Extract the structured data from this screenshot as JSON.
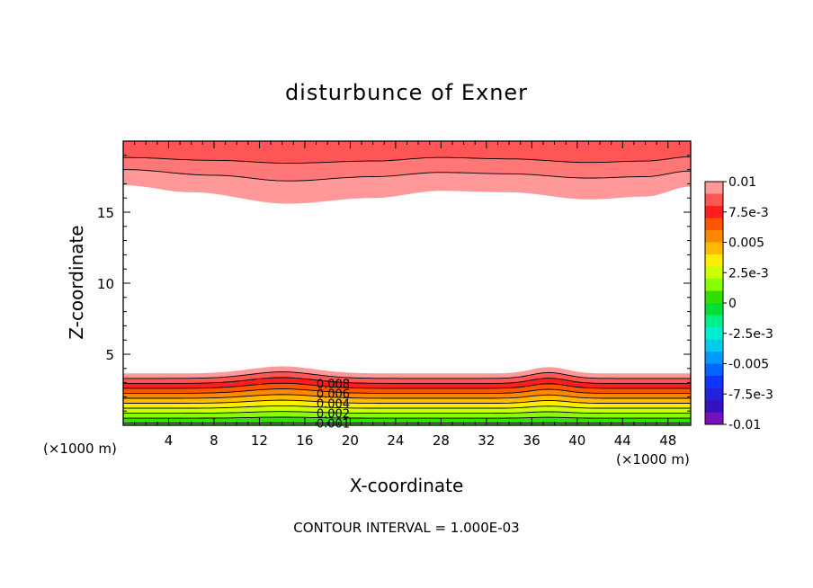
{
  "chart_data": {
    "type": "heatmap",
    "subtype": "filled-contour",
    "title": "disturbunce of Exner",
    "xlabel": "X-coordinate",
    "ylabel": "Z-coordinate",
    "x_unit_left": "(×1000 m)",
    "x_unit_right": "(×1000 m)",
    "xlim": [
      0,
      50
    ],
    "ylim": [
      0,
      20
    ],
    "x_ticks": [
      4,
      8,
      12,
      16,
      20,
      24,
      28,
      32,
      36,
      40,
      44,
      48
    ],
    "x_tick_labels": [
      "4",
      "8",
      "12",
      "16",
      "20",
      "24",
      "28",
      "32",
      "36",
      "40",
      "44",
      "48"
    ],
    "y_ticks": [
      5,
      10,
      15
    ],
    "y_tick_labels": [
      "5",
      "10",
      "15"
    ],
    "contour_interval_text": "CONTOUR INTERVAL = 1.000E-03",
    "contour_labels": [
      "0.008",
      "0.006",
      "0.004",
      "0.002",
      "0.001"
    ],
    "colorbar": {
      "min": -0.01,
      "max": 0.01,
      "tick_labels": [
        "0.01",
        "7.5e-3",
        "0.005",
        "2.5e-3",
        "0",
        "-2.5e-3",
        "-0.005",
        "-7.5e-3",
        "-0.01"
      ],
      "tick_values": [
        0.01,
        0.0075,
        0.005,
        0.0025,
        0,
        -0.0025,
        -0.005,
        -0.0075,
        -0.01
      ],
      "colors_top_to_bottom": [
        "#ff9999",
        "#ff5555",
        "#ff1e1e",
        "#ff5500",
        "#ff8800",
        "#ffbb00",
        "#ffee00",
        "#ccff00",
        "#88ff00",
        "#33dd00",
        "#00dd33",
        "#00ee88",
        "#00eecc",
        "#00ccee",
        "#0099ff",
        "#0066ff",
        "#1133ff",
        "#2222dd",
        "#3311bb",
        "#7711bb"
      ]
    },
    "bottom_layer_levels": [
      {
        "value": 0.0095,
        "color": "#ff9999"
      },
      {
        "value": 0.0085,
        "color": "#ff5555"
      },
      {
        "value": 0.0075,
        "color": "#ff1e1e"
      },
      {
        "value": 0.0065,
        "color": "#ff5500"
      },
      {
        "value": 0.0055,
        "color": "#ff8800"
      },
      {
        "value": 0.0045,
        "color": "#ffbb00"
      },
      {
        "value": 0.0035,
        "color": "#ffee00"
      },
      {
        "value": 0.0025,
        "color": "#ccff00"
      },
      {
        "value": 0.0015,
        "color": "#88ff00"
      },
      {
        "value": 0.0005,
        "color": "#33dd00"
      }
    ],
    "top_layer_levels": [
      {
        "value": 0.0095,
        "color": "#ff9999"
      },
      {
        "value": 0.0085,
        "color": "#ff7777"
      },
      {
        "value": 0.0075,
        "color": "#ff5555"
      }
    ],
    "bottom_contour_depths_km": [
      3.65,
      3.3,
      2.95,
      2.6,
      2.25,
      1.9,
      1.55,
      1.2,
      0.85,
      0.5,
      0.15
    ],
    "bottom_ridges": [
      {
        "x": 14,
        "amp": 0.5,
        "width": 4
      },
      {
        "x": 37.5,
        "amp": 0.45,
        "width": 2.2
      }
    ],
    "top_band_edges_km": [
      [
        [
          0,
          16.9
        ],
        [
          6,
          16.4
        ],
        [
          14.5,
          15.6
        ],
        [
          22,
          16.0
        ],
        [
          28,
          16.5
        ],
        [
          34,
          16.4
        ],
        [
          41,
          15.9
        ],
        [
          46,
          16.1
        ],
        [
          50,
          16.8
        ]
      ],
      [
        [
          0,
          18.0
        ],
        [
          8,
          17.6
        ],
        [
          14.5,
          17.2
        ],
        [
          22,
          17.5
        ],
        [
          28,
          17.8
        ],
        [
          34,
          17.7
        ],
        [
          41,
          17.4
        ],
        [
          46,
          17.5
        ],
        [
          50,
          17.9
        ]
      ],
      [
        [
          0,
          18.85
        ],
        [
          8,
          18.65
        ],
        [
          14.5,
          18.45
        ],
        [
          22,
          18.6
        ],
        [
          28,
          18.85
        ],
        [
          34,
          18.75
        ],
        [
          41,
          18.5
        ],
        [
          46,
          18.6
        ],
        [
          50,
          18.9
        ]
      ]
    ]
  }
}
